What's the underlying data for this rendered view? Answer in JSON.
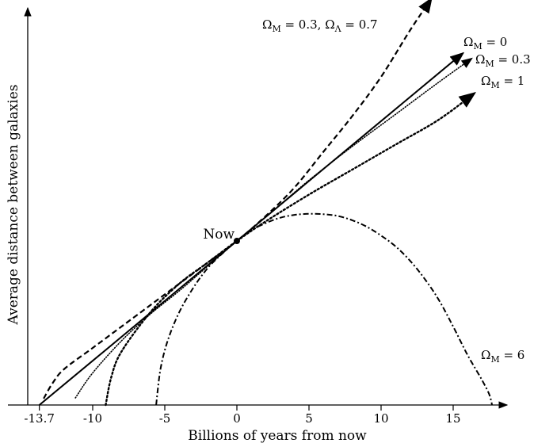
{
  "chart_data": {
    "type": "line",
    "title": "",
    "xlabel": "Billions of years from now",
    "ylabel": "Average distance between galaxies",
    "xlim": [
      -14.5,
      18.5
    ],
    "ylim": [
      0,
      11.7
    ],
    "x_ticks": [
      {
        "value": -13.7,
        "label": "-13.7"
      },
      {
        "value": -10,
        "label": "-10"
      },
      {
        "value": -5,
        "label": "-5"
      },
      {
        "value": 0,
        "label": "0"
      },
      {
        "value": 5,
        "label": "5"
      },
      {
        "value": 10,
        "label": "10"
      },
      {
        "value": 15,
        "label": "15"
      }
    ],
    "now_point": {
      "x": 0,
      "y": 4.6,
      "label": "Now"
    },
    "series": [
      {
        "name": "ΩM = 0.3, ΩΛ = 0.7",
        "label_main": "Ω",
        "label_sub": "M",
        "label_rest": " = 0.3, Ω",
        "label_sub2": "Λ",
        "label_rest2": " = 0.7",
        "style": "dashed",
        "points": [
          [
            -13.4,
            0.18
          ],
          [
            -12.8,
            0.6
          ],
          [
            -12,
            1
          ],
          [
            -10,
            1.6
          ],
          [
            -8,
            2.2
          ],
          [
            -6,
            2.8
          ],
          [
            -4,
            3.4
          ],
          [
            -2,
            4
          ],
          [
            0,
            4.6
          ],
          [
            2,
            5.3
          ],
          [
            4,
            6.1
          ],
          [
            6,
            7.1
          ],
          [
            8,
            8.1
          ],
          [
            10,
            9.2
          ],
          [
            12,
            10.5
          ],
          [
            13.5,
            11.4
          ]
        ],
        "arrow": true
      },
      {
        "name": "ΩM = 0",
        "label_main": "Ω",
        "label_sub": "M",
        "label_rest": " = 0",
        "label_sub2": "",
        "label_rest2": "",
        "style": "solid",
        "points": [
          [
            -13.7,
            0
          ],
          [
            -10,
            1.24
          ],
          [
            -5,
            2.92
          ],
          [
            0,
            4.6
          ],
          [
            5,
            6.28
          ],
          [
            10,
            7.96
          ],
          [
            15,
            9.64
          ],
          [
            15.7,
            9.87
          ]
        ],
        "arrow": true
      },
      {
        "name": "ΩM = 0.3",
        "label_main": "Ω",
        "label_sub": "M",
        "label_rest": " = 0.3",
        "label_sub2": "",
        "label_rest2": "",
        "style": "fine-dotted",
        "points": [
          [
            -11.2,
            0.2
          ],
          [
            -10,
            0.9
          ],
          [
            -8,
            1.8
          ],
          [
            -6,
            2.55
          ],
          [
            -4,
            3.2
          ],
          [
            -2,
            3.9
          ],
          [
            0,
            4.6
          ],
          [
            2,
            5.27
          ],
          [
            5,
            6.3
          ],
          [
            8,
            7.25
          ],
          [
            11,
            8.15
          ],
          [
            14,
            9.05
          ],
          [
            16.3,
            9.72
          ]
        ],
        "arrow": true
      },
      {
        "name": "ΩM = 1",
        "label_main": "Ω",
        "label_sub": "M",
        "label_rest": " = 1",
        "label_sub2": "",
        "label_rest2": "",
        "style": "dotted",
        "points": [
          [
            -9.1,
            0
          ],
          [
            -8.7,
            0.8
          ],
          [
            -8,
            1.5
          ],
          [
            -6,
            2.6
          ],
          [
            -4,
            3.4
          ],
          [
            -2,
            4
          ],
          [
            0,
            4.6
          ],
          [
            2,
            5.15
          ],
          [
            5,
            5.9
          ],
          [
            8,
            6.6
          ],
          [
            11,
            7.3
          ],
          [
            14,
            8
          ],
          [
            16.5,
            8.75
          ]
        ],
        "arrow": true
      },
      {
        "name": "ΩM = 6",
        "label_main": "Ω",
        "label_sub": "M",
        "label_rest": " = 6",
        "label_sub2": "",
        "label_rest2": "",
        "style": "dash-dot",
        "points": [
          [
            -5.6,
            0
          ],
          [
            -5.3,
            1
          ],
          [
            -4.8,
            1.8
          ],
          [
            -4,
            2.6
          ],
          [
            -3,
            3.3
          ],
          [
            -2,
            3.85
          ],
          [
            -1,
            4.25
          ],
          [
            0,
            4.6
          ],
          [
            1,
            4.9
          ],
          [
            2,
            5.1
          ],
          [
            3,
            5.25
          ],
          [
            4,
            5.33
          ],
          [
            5,
            5.36
          ],
          [
            6,
            5.35
          ],
          [
            7,
            5.3
          ],
          [
            8,
            5.18
          ],
          [
            9,
            5
          ],
          [
            10,
            4.75
          ],
          [
            11,
            4.45
          ],
          [
            12,
            4.05
          ],
          [
            13,
            3.55
          ],
          [
            14,
            2.95
          ],
          [
            15,
            2.2
          ],
          [
            16,
            1.4
          ],
          [
            17,
            0.7
          ],
          [
            17.5,
            0.3
          ],
          [
            17.7,
            0
          ]
        ],
        "arrow": false
      }
    ]
  }
}
